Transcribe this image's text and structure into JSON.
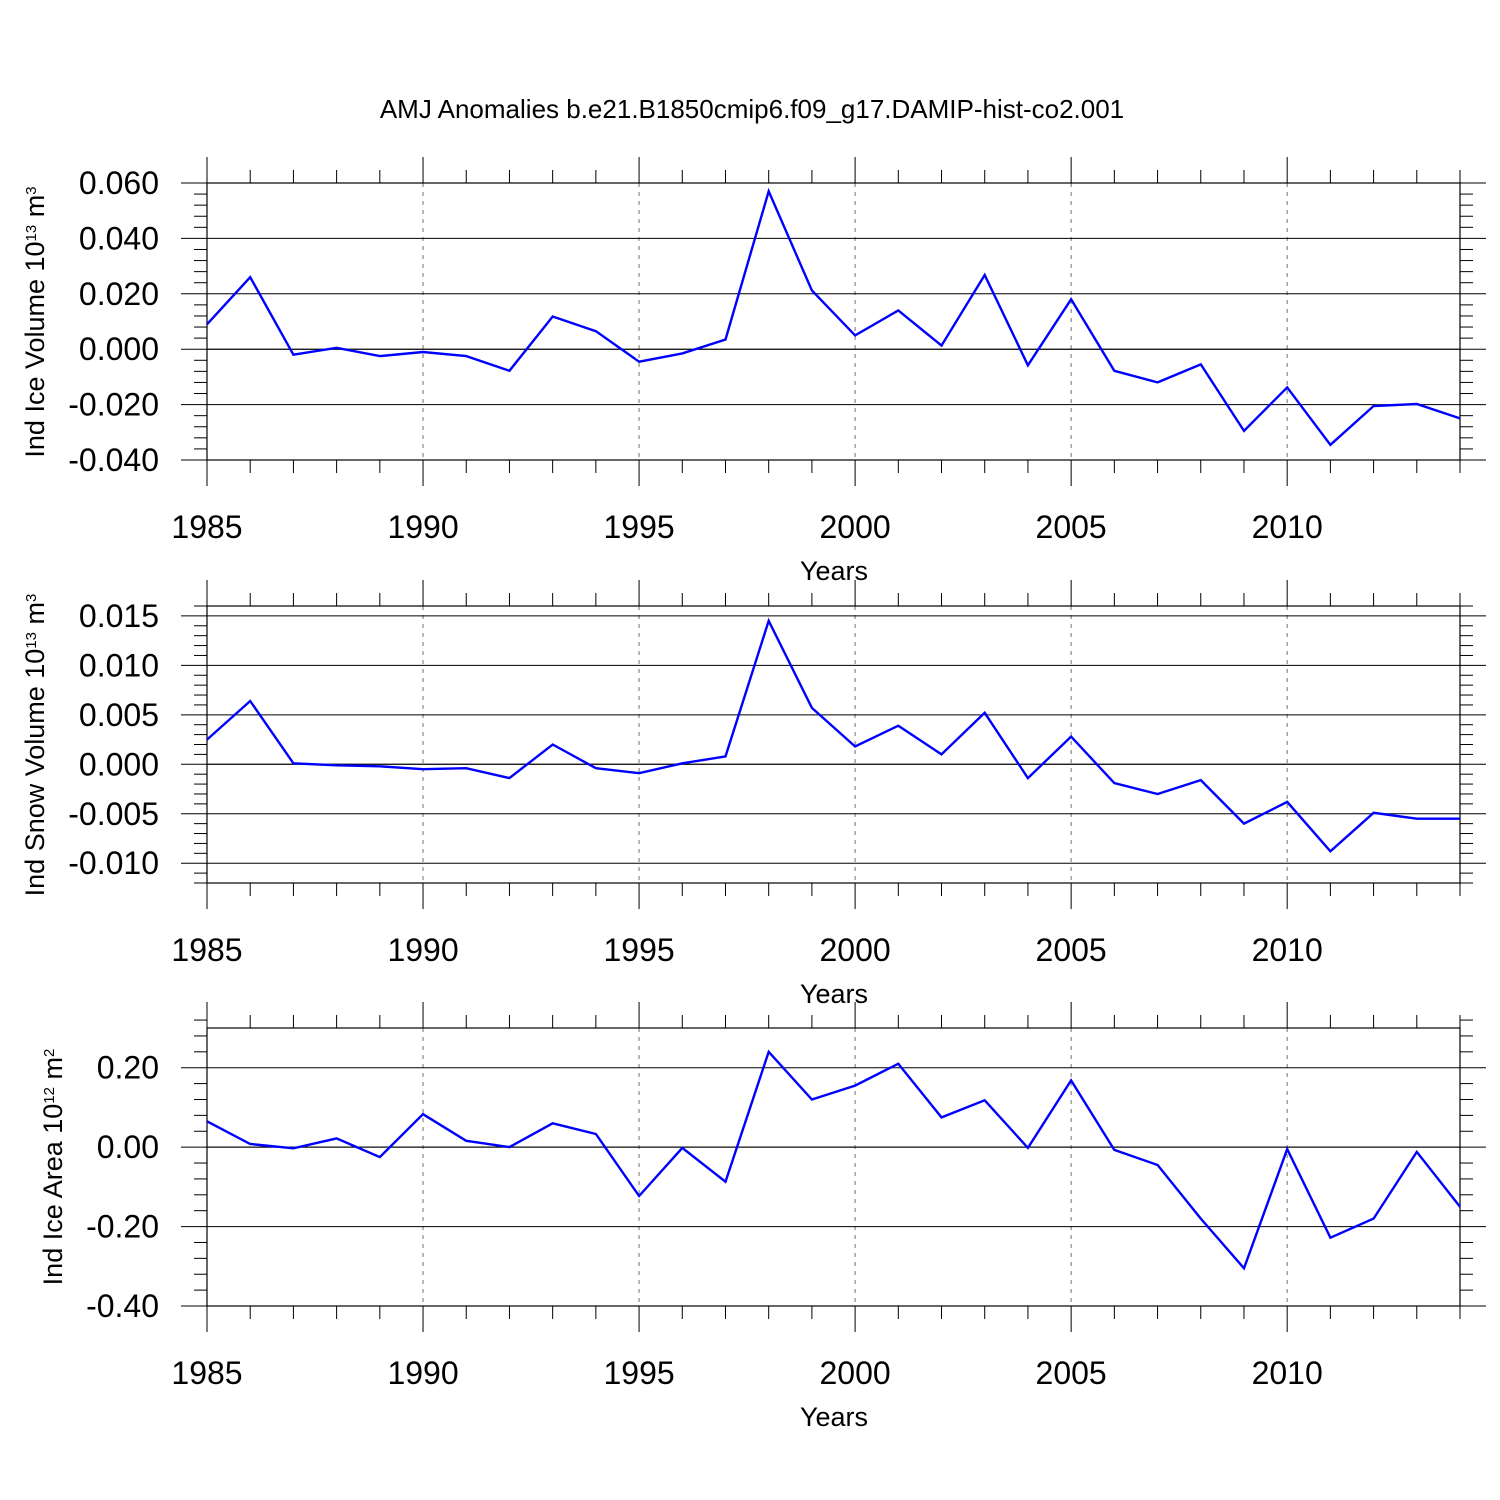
{
  "title": "AMJ Anomalies b.e21.B1850cmip6.f09_g17.DAMIP-hist-co2.001",
  "colors": {
    "line": "#0000ff",
    "axis": "#000000",
    "gridline": "#888888"
  },
  "chart_data": [
    {
      "type": "line",
      "xlabel": "Years",
      "ylabel": {
        "text": "Ind Ice Volume 10",
        "sup": "13",
        "text2": " m",
        "sup2": "3"
      },
      "xlim": [
        1985,
        2014
      ],
      "ylim": [
        -0.04,
        0.06
      ],
      "xticks": [
        1985,
        1990,
        1995,
        2000,
        2005,
        2010
      ],
      "yticks": [
        "0.060",
        "0.040",
        "0.020",
        "0.000",
        "-0.020",
        "-0.040"
      ],
      "ytick_values": [
        0.06,
        0.04,
        0.02,
        0.0,
        -0.02,
        -0.04
      ],
      "grid": "vertical dashed at major x ticks",
      "x": [
        1985,
        1986,
        1987,
        1988,
        1989,
        1990,
        1991,
        1992,
        1993,
        1994,
        1995,
        1996,
        1997,
        1998,
        1999,
        2000,
        2001,
        2002,
        2003,
        2004,
        2005,
        2006,
        2007,
        2008,
        2009,
        2010,
        2011,
        2012,
        2013,
        2014
      ],
      "values": [
        0.009,
        0.026,
        -0.002,
        0.0005,
        -0.0025,
        -0.001,
        -0.0025,
        -0.0078,
        0.0118,
        0.0065,
        -0.0045,
        -0.0015,
        0.0035,
        0.057,
        0.0212,
        0.005,
        0.014,
        0.0013,
        0.0268,
        -0.0058,
        0.018,
        -0.0078,
        -0.012,
        -0.0055,
        -0.0295,
        -0.0138,
        -0.0345,
        -0.0205,
        -0.0198,
        -0.025
      ]
    },
    {
      "type": "line",
      "xlabel": "Years",
      "ylabel": {
        "text": "Ind Snow Volume 10",
        "sup": "13",
        "text2": " m",
        "sup2": "3"
      },
      "xlim": [
        1985,
        2014
      ],
      "ylim": [
        -0.012,
        0.016
      ],
      "xticks": [
        1985,
        1990,
        1995,
        2000,
        2005,
        2010
      ],
      "yticks": [
        "0.015",
        "0.010",
        "0.005",
        "0.000",
        "-0.005",
        "-0.010"
      ],
      "ytick_values": [
        0.015,
        0.01,
        0.005,
        0.0,
        -0.005,
        -0.01
      ],
      "grid": "vertical dashed at major x ticks",
      "x": [
        1985,
        1986,
        1987,
        1988,
        1989,
        1990,
        1991,
        1992,
        1993,
        1994,
        1995,
        1996,
        1997,
        1998,
        1999,
        2000,
        2001,
        2002,
        2003,
        2004,
        2005,
        2006,
        2007,
        2008,
        2009,
        2010,
        2011,
        2012,
        2013,
        2014
      ],
      "values": [
        0.0025,
        0.0064,
        0.0001,
        -0.0001,
        -0.0002,
        -0.0005,
        -0.0004,
        -0.0014,
        0.002,
        -0.0004,
        -0.0009,
        0.0001,
        0.0008,
        0.0145,
        0.0057,
        0.0018,
        0.0039,
        0.001,
        0.0052,
        -0.0014,
        0.0028,
        -0.0019,
        -0.003,
        -0.0016,
        -0.006,
        -0.0038,
        -0.0088,
        -0.0049,
        -0.0055,
        -0.0055
      ]
    },
    {
      "type": "line",
      "xlabel": "Years",
      "ylabel": {
        "text": "Ind Ice Area 10",
        "sup": "12",
        "text2": " m",
        "sup2": "2"
      },
      "xlim": [
        1985,
        2014
      ],
      "ylim": [
        -0.4,
        0.3
      ],
      "xticks": [
        1985,
        1990,
        1995,
        2000,
        2005,
        2010
      ],
      "yticks": [
        "0.20",
        "0.00",
        "-0.20",
        "-0.40"
      ],
      "ytick_values": [
        0.2,
        0.0,
        -0.2,
        -0.4
      ],
      "grid": "vertical dashed at major x ticks",
      "x": [
        1985,
        1986,
        1987,
        1988,
        1989,
        1990,
        1991,
        1992,
        1993,
        1994,
        1995,
        1996,
        1997,
        1998,
        1999,
        2000,
        2001,
        2002,
        2003,
        2004,
        2005,
        2006,
        2007,
        2008,
        2009,
        2010,
        2011,
        2012,
        2013,
        2014
      ],
      "values": [
        0.065,
        0.008,
        -0.003,
        0.022,
        -0.025,
        0.083,
        0.016,
        0.0,
        0.06,
        0.033,
        -0.123,
        -0.002,
        -0.087,
        0.24,
        0.12,
        0.155,
        0.21,
        0.075,
        0.118,
        -0.002,
        0.168,
        -0.007,
        -0.045,
        -0.18,
        -0.305,
        -0.005,
        -0.228,
        -0.18,
        -0.012,
        -0.15
      ]
    }
  ]
}
